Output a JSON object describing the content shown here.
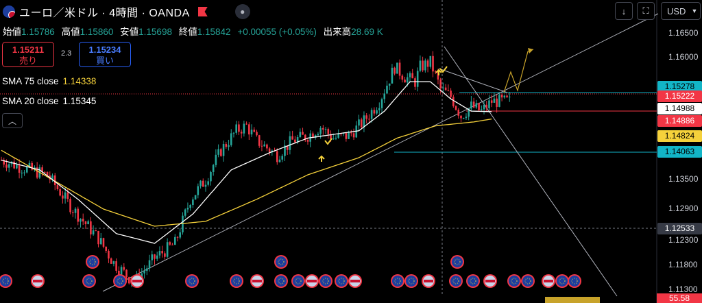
{
  "header": {
    "symbol_title": "ユーロ／米ドル · 4時間 · OANDA",
    "currency": "USD",
    "down_arrow": "↓",
    "fullscreen_icon": "⛶"
  },
  "ohlc": {
    "open_label": "始値",
    "open": "1.15786",
    "high_label": "高値",
    "high": "1.15860",
    "low_label": "安値",
    "low": "1.15698",
    "close_label": "終値",
    "close": "1.15842",
    "change": "+0.00055 (+0.05%)",
    "volume_label": "出来高",
    "volume": "28.69 K"
  },
  "trade": {
    "sell_price": "1.15211",
    "sell_label": "売り",
    "spread": "2.3",
    "buy_price": "1.15234",
    "buy_label": "買い"
  },
  "indicators": [
    {
      "name": "SMA 75 close",
      "value": "1.14338",
      "color": "#f5d13b"
    },
    {
      "name": "SMA 20 close",
      "value": "1.15345",
      "color": "#ffffff"
    }
  ],
  "price_labels": [
    {
      "value": "1.15278",
      "bg": "#12b5c7",
      "fg": "#000000"
    },
    {
      "value": "1.15222",
      "bg": "#f23645",
      "fg": "#ffffff"
    },
    {
      "value": "1.14988",
      "bg": "#ffffff",
      "fg": "#000000"
    },
    {
      "value": "1.14886",
      "bg": "#f23645",
      "fg": "#ffffff"
    },
    {
      "value": "1.14824",
      "bg": "#f5d13b",
      "fg": "#000000"
    },
    {
      "value": "1.14063",
      "bg": "#12b5c7",
      "fg": "#000000"
    },
    {
      "value": "1.12533",
      "bg": "#363a45",
      "fg": "#ffffff"
    }
  ],
  "rsi_value": "55.58",
  "chart_data": {
    "type": "candlestick",
    "ylim": [
      1.1125,
      1.1685
    ],
    "y_ticks": [
      "1.16500",
      "1.16000",
      "1.15500",
      "1.15000",
      "1.14500",
      "1.14000",
      "1.13500",
      "1.13000",
      "1.12500",
      "1.12000",
      "1.11500",
      "1.11000"
    ],
    "y_tick_labels": [
      "1.16500",
      "1.16000",
      "",
      "",
      "",
      "",
      "1.13500",
      "1.12900",
      "",
      "1.12300",
      "1.11800",
      "1.11300"
    ],
    "n_candles": 200,
    "candle_closes_key_points": [
      [
        0,
        1.14
      ],
      [
        8,
        1.1385
      ],
      [
        18,
        1.137
      ],
      [
        28,
        1.13
      ],
      [
        38,
        1.124
      ],
      [
        44,
        1.119
      ],
      [
        52,
        1.115
      ],
      [
        60,
        1.12
      ],
      [
        68,
        1.123
      ],
      [
        74,
        1.132
      ],
      [
        80,
        1.136
      ],
      [
        86,
        1.142
      ],
      [
        92,
        1.146
      ],
      [
        96,
        1.147
      ],
      [
        100,
        1.144
      ],
      [
        108,
        1.141
      ],
      [
        114,
        1.144
      ],
      [
        120,
        1.145
      ],
      [
        125,
        1.1468
      ],
      [
        130,
        1.1445
      ],
      [
        136,
        1.145
      ],
      [
        142,
        1.148
      ],
      [
        148,
        1.152
      ],
      [
        154,
        1.159
      ],
      [
        158,
        1.157
      ],
      [
        162,
        1.156
      ],
      [
        164,
        1.159
      ],
      [
        168,
        1.16
      ],
      [
        172,
        1.1545
      ],
      [
        176,
        1.153
      ],
      [
        180,
        1.149
      ],
      [
        184,
        1.151
      ],
      [
        188,
        1.15
      ],
      [
        192,
        1.152
      ]
    ],
    "sma75_points": [
      [
        0,
        1.142
      ],
      [
        20,
        1.136
      ],
      [
        40,
        1.13
      ],
      [
        60,
        1.1265
      ],
      [
        80,
        1.1275
      ],
      [
        100,
        1.132
      ],
      [
        120,
        1.137
      ],
      [
        140,
        1.1405
      ],
      [
        155,
        1.1445
      ],
      [
        170,
        1.147
      ],
      [
        185,
        1.1478
      ],
      [
        192,
        1.1484
      ]
    ],
    "sma20_points": [
      [
        0,
        1.14
      ],
      [
        15,
        1.138
      ],
      [
        30,
        1.132
      ],
      [
        45,
        1.125
      ],
      [
        60,
        1.123
      ],
      [
        75,
        1.129
      ],
      [
        90,
        1.138
      ],
      [
        105,
        1.1415
      ],
      [
        120,
        1.1445
      ],
      [
        140,
        1.146
      ],
      [
        150,
        1.15
      ],
      [
        160,
        1.156
      ],
      [
        168,
        1.156
      ],
      [
        176,
        1.1525
      ],
      [
        184,
        1.15
      ],
      [
        192,
        1.1499
      ]
    ]
  }
}
